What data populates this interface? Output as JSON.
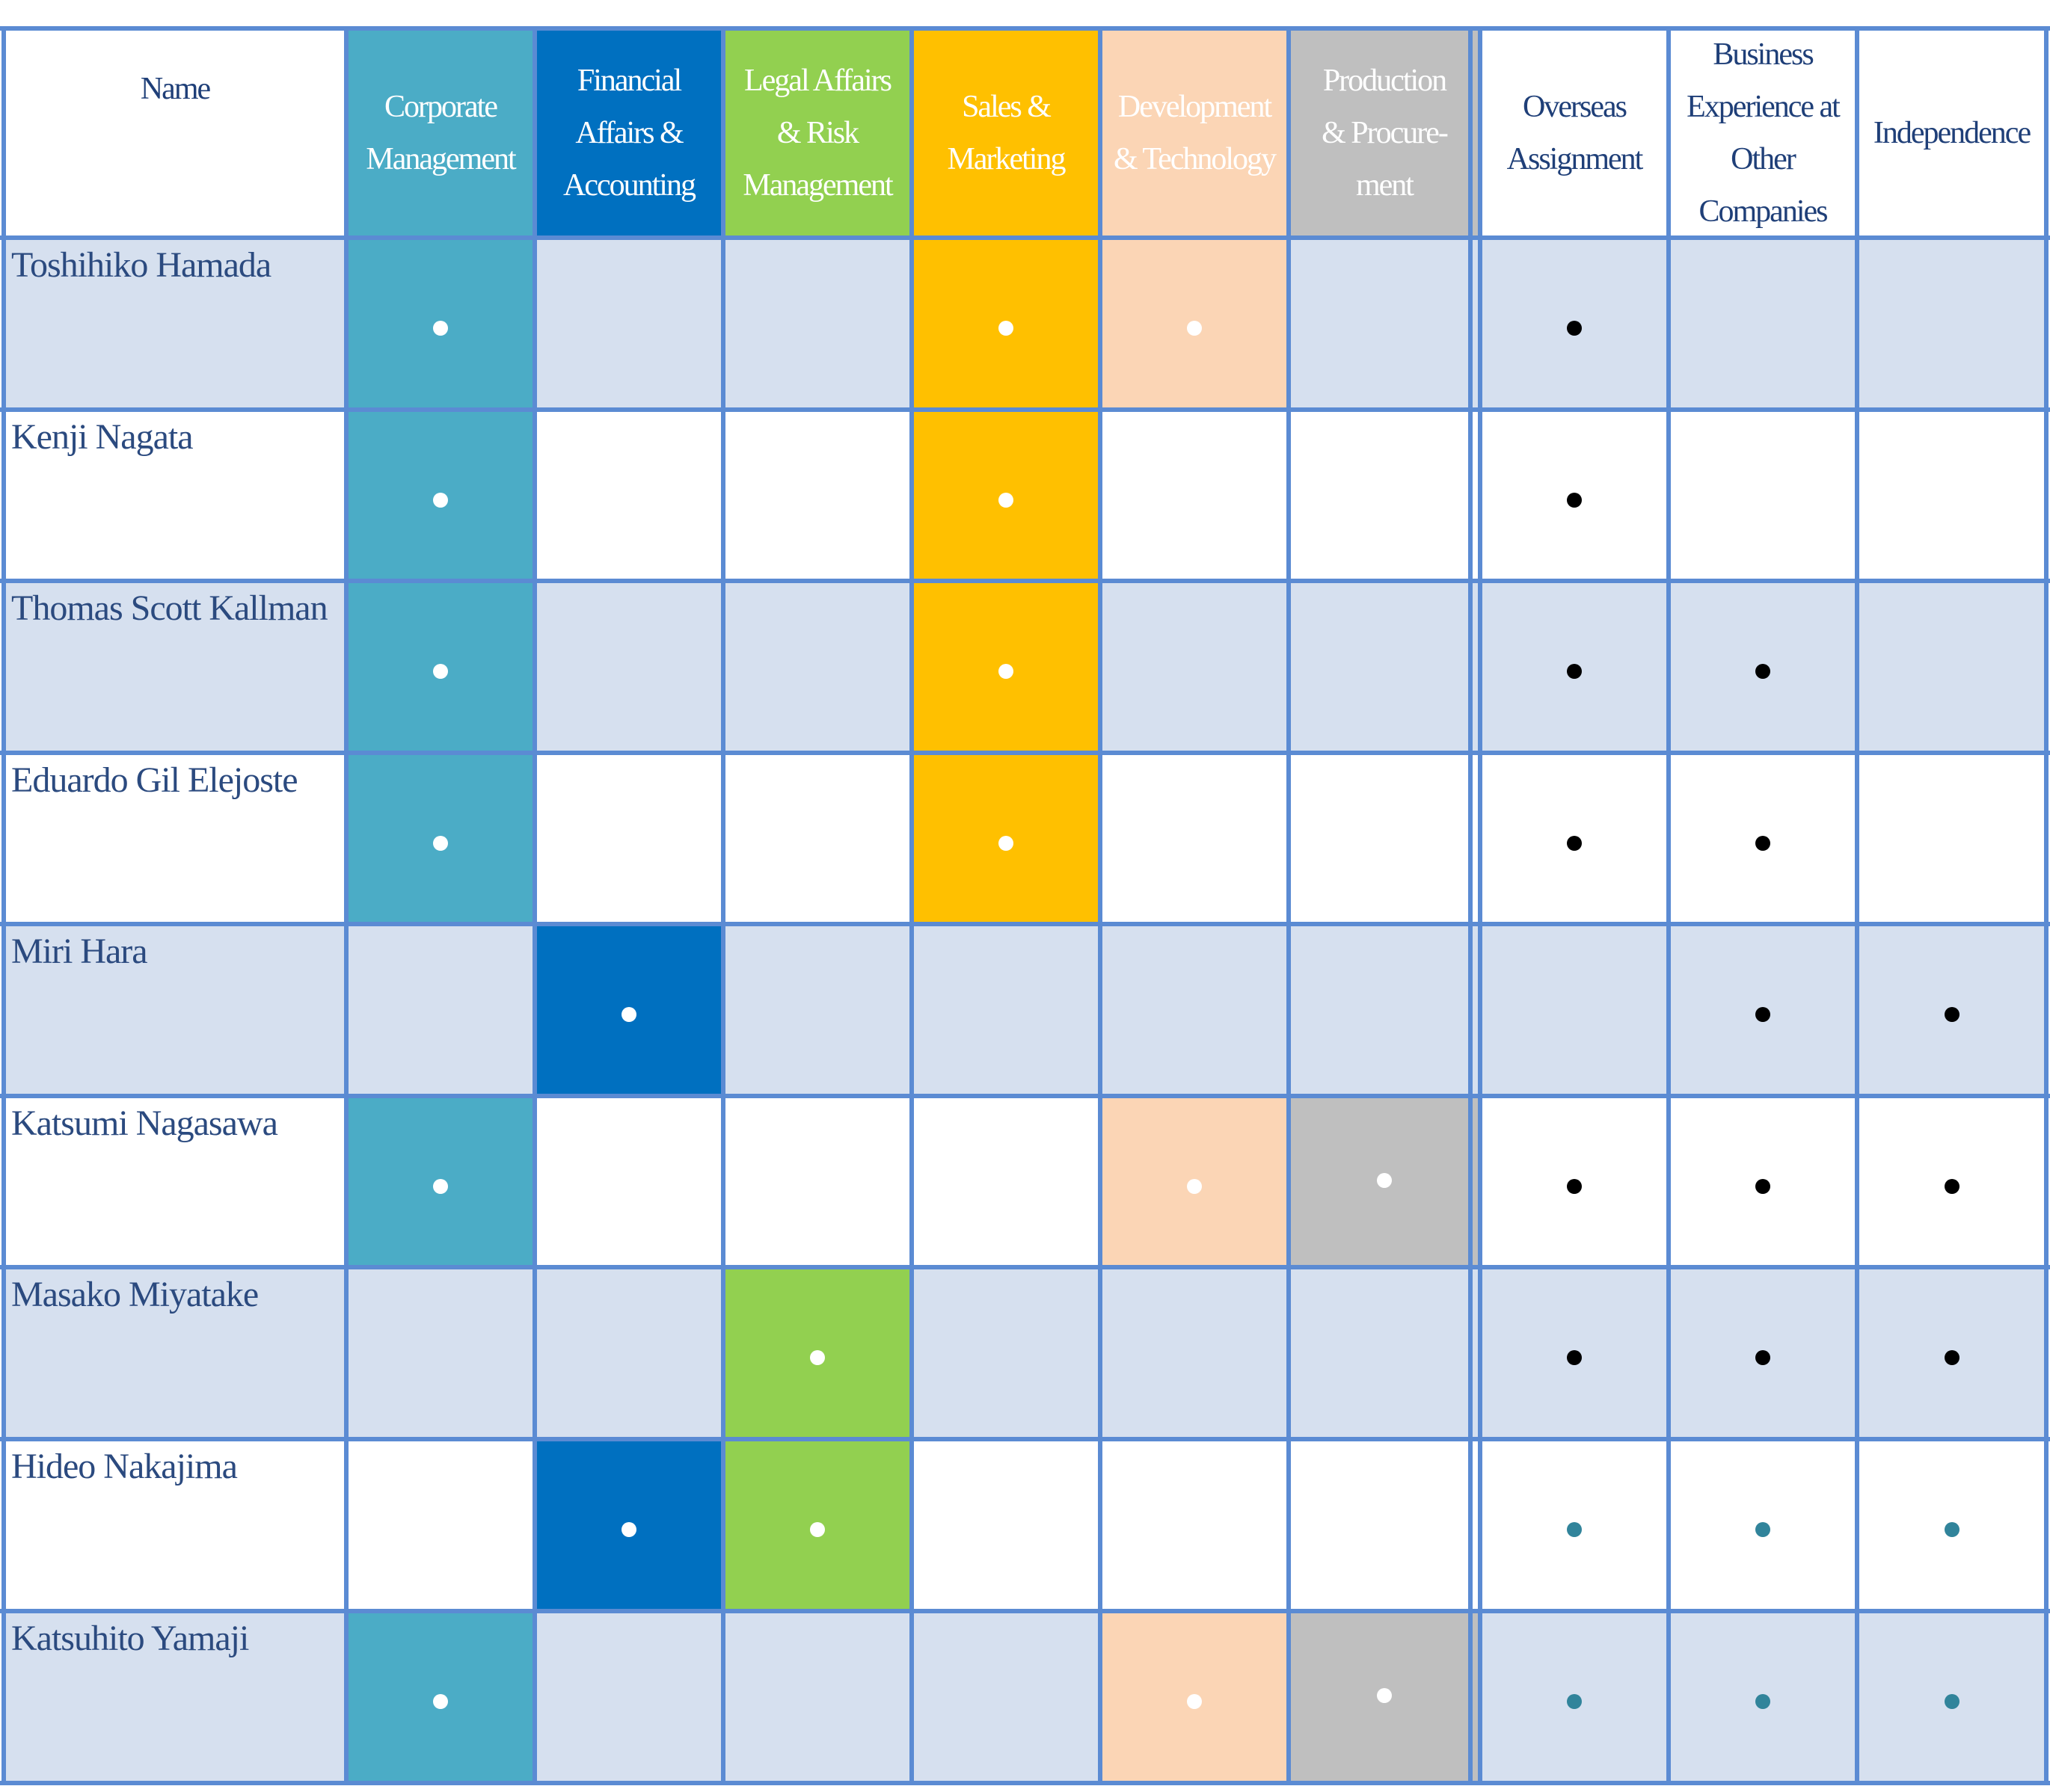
{
  "header": {
    "name": "Name",
    "skills": [
      {
        "key": "corp",
        "label": "Corporate\nManagement",
        "bg": "#4bacc6",
        "fg": "#ffffff"
      },
      {
        "key": "fin",
        "label": "Financial\nAffairs &\nAccounting",
        "bg": "#0070c0",
        "fg": "#ffffff"
      },
      {
        "key": "legal",
        "label": "Legal Affairs\n& Risk\nManagement",
        "bg": "#92d050",
        "fg": "#ffffff"
      },
      {
        "key": "sales",
        "label": "Sales &\nMarketing",
        "bg": "#ffc000",
        "fg": "#ffffff"
      },
      {
        "key": "dev",
        "label": "Development\n& Technology",
        "bg": "#fbd5b5",
        "fg": "#ffffff"
      },
      {
        "key": "prod",
        "label": "Production\n& Procure-\nment",
        "bg": "#bfbfbf",
        "fg": "#ffffff"
      }
    ],
    "attributes": [
      {
        "key": "overseas",
        "label": "Overseas\nAssignment"
      },
      {
        "key": "business",
        "label": "Business\nExperience at\nOther\nCompanies"
      },
      {
        "key": "independence",
        "label": "Independence"
      }
    ]
  },
  "colors": {
    "grid": "#5b8bd3",
    "header_text": "#1f3f78",
    "row_alt": "#d6e0ef",
    "row_plain": "#ffffff",
    "dot_skill": "#ffffff",
    "dot_attr_black": "#000000",
    "dot_attr_teal": "#31849b"
  },
  "rows": [
    {
      "name": "Toshihiko Hamada",
      "skills": [
        1,
        0,
        0,
        1,
        1,
        0
      ],
      "attrs": [
        1,
        0,
        0
      ],
      "attr_color": "black"
    },
    {
      "name": "Kenji Nagata",
      "skills": [
        1,
        0,
        0,
        1,
        0,
        0
      ],
      "attrs": [
        1,
        0,
        0
      ],
      "attr_color": "black"
    },
    {
      "name": "Thomas Scott Kallman",
      "skills": [
        1,
        0,
        0,
        1,
        0,
        0
      ],
      "attrs": [
        1,
        1,
        0
      ],
      "attr_color": "black"
    },
    {
      "name": "Eduardo Gil Elejoste",
      "skills": [
        1,
        0,
        0,
        1,
        0,
        0
      ],
      "attrs": [
        1,
        1,
        0
      ],
      "attr_color": "black"
    },
    {
      "name": "Miri Hara",
      "skills": [
        0,
        1,
        0,
        0,
        0,
        0
      ],
      "attrs": [
        0,
        1,
        1
      ],
      "attr_color": "black"
    },
    {
      "name": "Katsumi Nagasawa",
      "skills": [
        1,
        0,
        0,
        0,
        1,
        1
      ],
      "attrs": [
        1,
        1,
        1
      ],
      "attr_color": "black"
    },
    {
      "name": "Masako Miyatake",
      "skills": [
        0,
        0,
        1,
        0,
        0,
        0
      ],
      "attrs": [
        1,
        1,
        1
      ],
      "attr_color": "black"
    },
    {
      "name": "Hideo Nakajima",
      "skills": [
        0,
        1,
        1,
        0,
        0,
        0
      ],
      "attrs": [
        1,
        1,
        1
      ],
      "attr_color": "teal"
    },
    {
      "name": "Katsuhito Yamaji",
      "skills": [
        1,
        0,
        0,
        0,
        1,
        1
      ],
      "attrs": [
        1,
        1,
        1
      ],
      "attr_color": "teal"
    }
  ]
}
